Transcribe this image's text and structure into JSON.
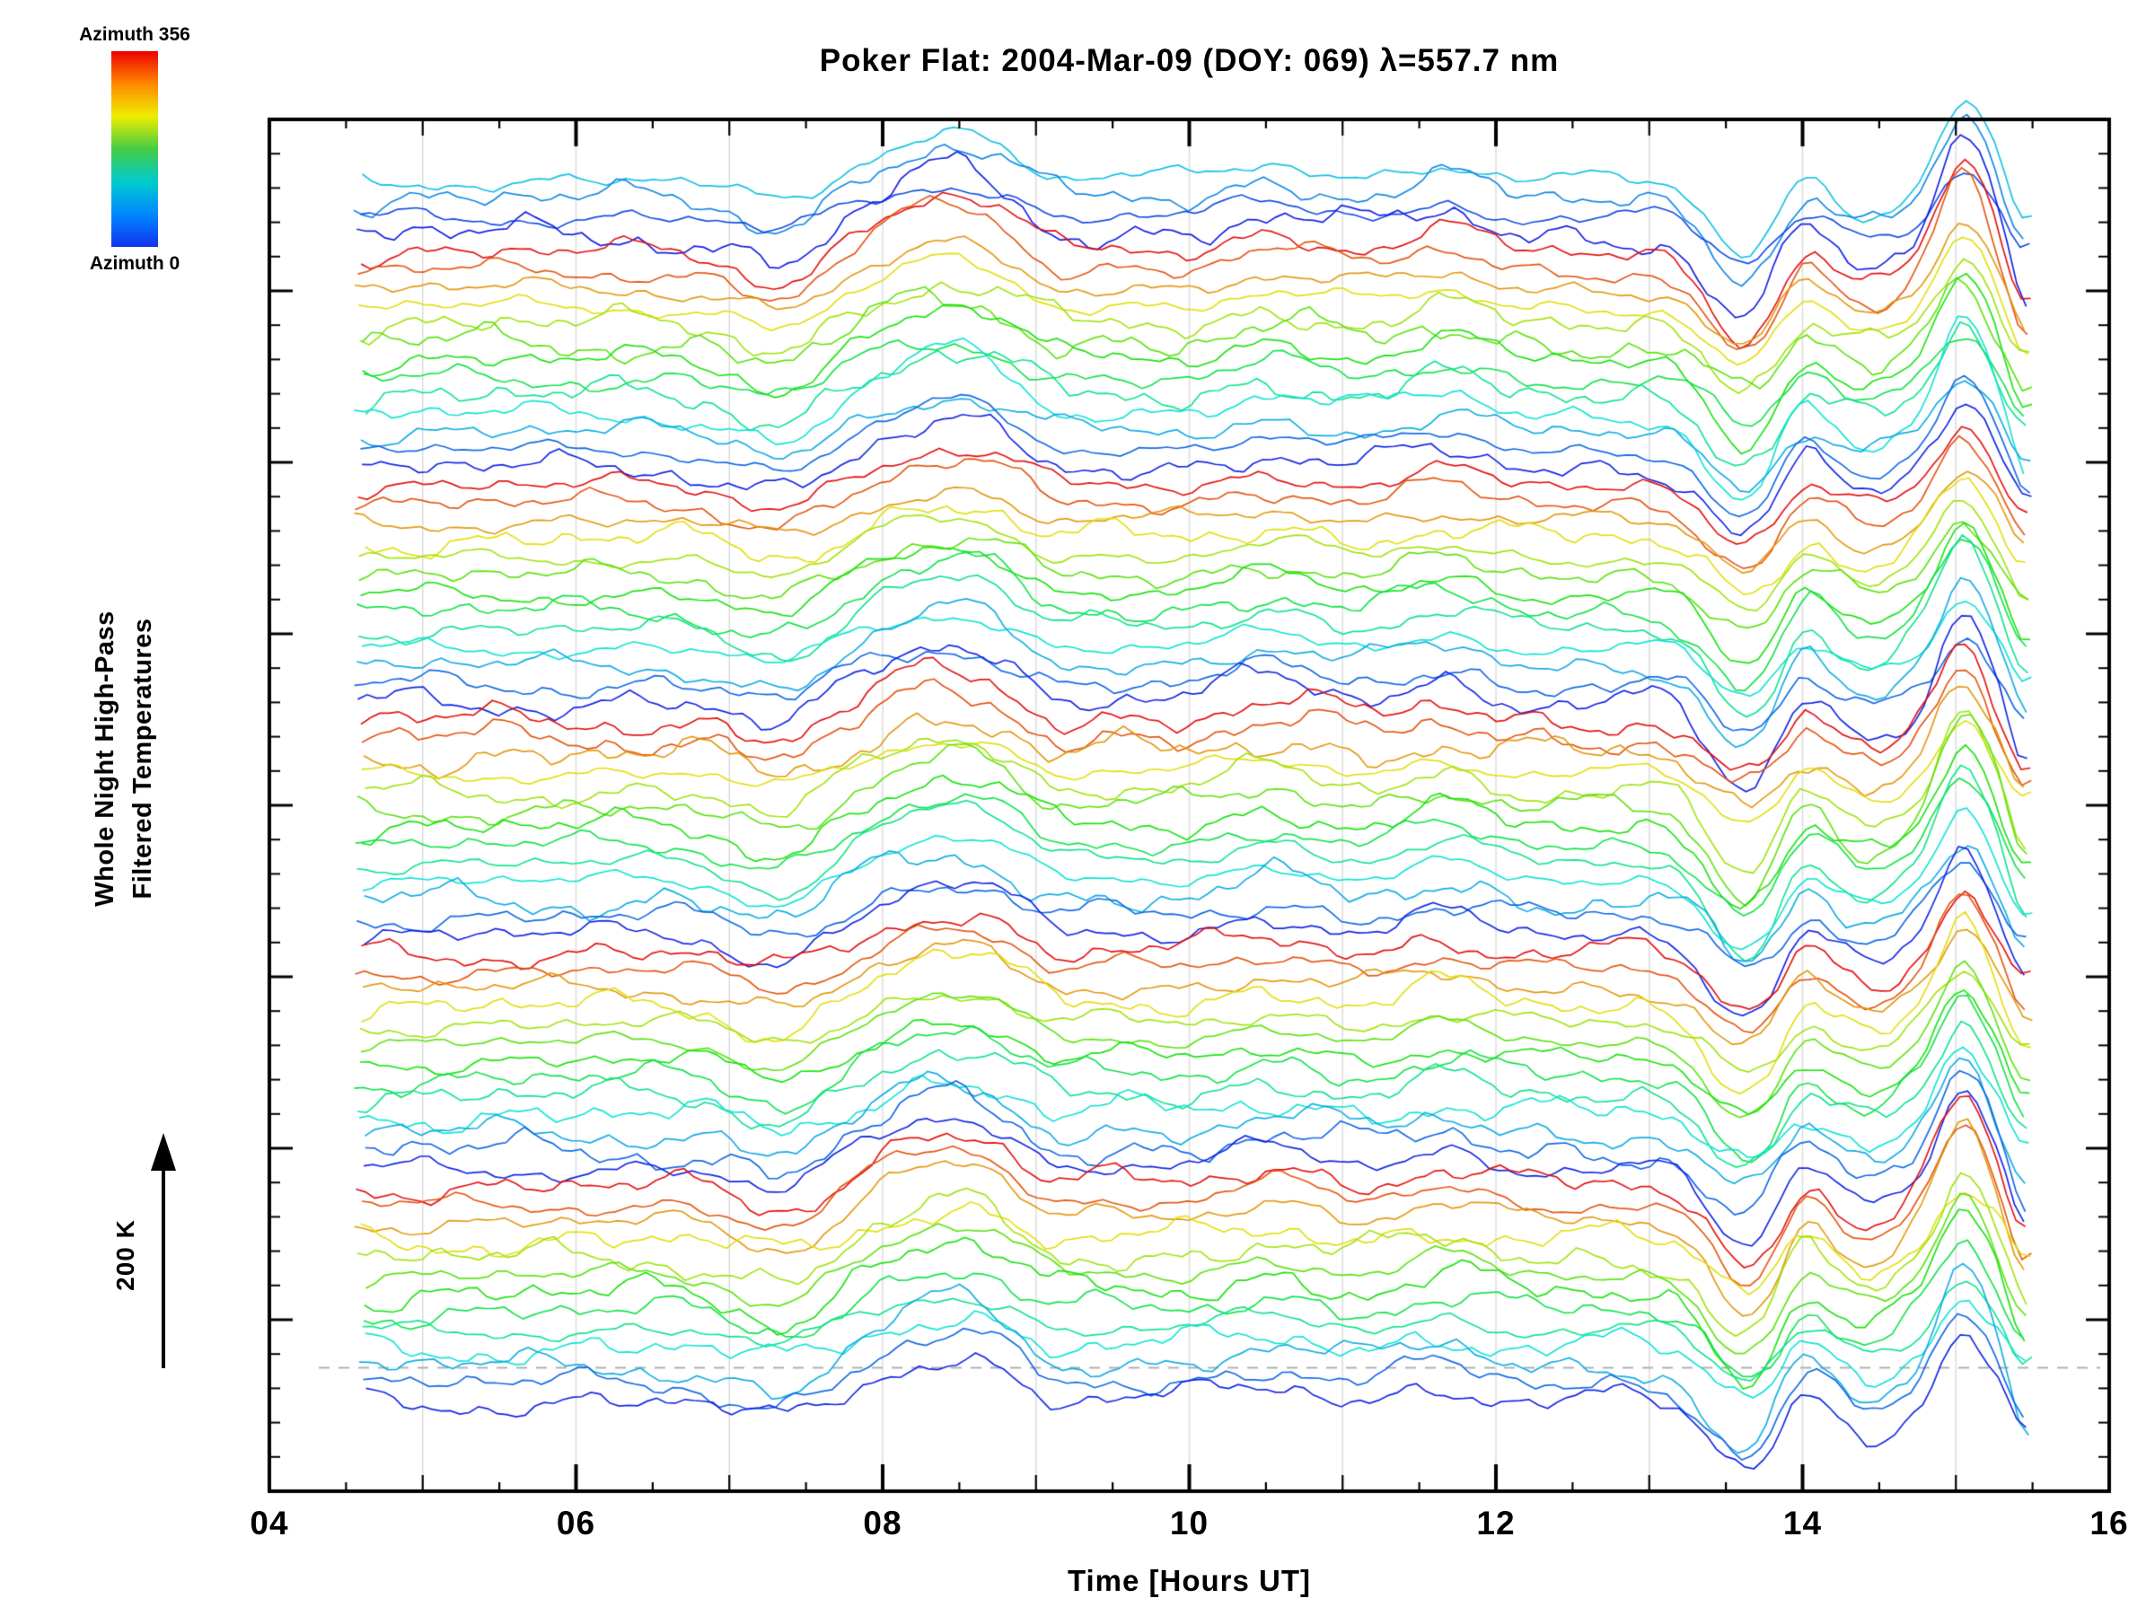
{
  "title": "Poker Flat: 2004-Mar-09 (DOY: 069) λ=557.7 nm",
  "xlabel": "Time [Hours UT]",
  "ylabel_line1": "Whole Night High-Pass",
  "ylabel_line2": "Filtered Temperatures",
  "scale_label": "200 K",
  "colorbar": {
    "top_label": "Azimuth 356",
    "bottom_label": "Azimuth 0",
    "stops": [
      "#ee0000",
      "#ff8800",
      "#eeee00",
      "#44cc44",
      "#00cccc",
      "#0088ff",
      "#1133ee"
    ]
  },
  "chart_data": {
    "type": "line",
    "title": "Poker Flat: 2004-Mar-09 (DOY: 069) λ=557.7 nm",
    "xlabel": "Time [Hours UT]",
    "ylabel": "Whole Night High-Pass Filtered Temperatures",
    "x_range": [
      4,
      16
    ],
    "x_tick_values": [
      4,
      6,
      8,
      10,
      12,
      14,
      16
    ],
    "x_tick_labels": [
      "04",
      "06",
      "08",
      "10",
      "12",
      "14",
      "16"
    ],
    "x_minor_step": 0.5,
    "grid_x_hours": [
      5,
      6,
      7,
      8,
      9,
      10,
      11,
      12,
      13,
      14,
      15
    ],
    "grid_on": true,
    "legend_position": "colorbar-top-left",
    "data_x_start": 4.55,
    "data_x_end": 15.5,
    "n_points": 180,
    "scale_bar_kelvin": 200,
    "azimuth_min": 0,
    "azimuth_max": 356,
    "trace_azimuths": [
      75,
      50,
      25,
      5,
      356,
      327,
      298,
      269,
      240,
      211,
      182,
      153,
      124,
      95,
      66,
      37,
      8,
      356,
      327,
      298,
      269,
      240,
      211,
      182,
      153,
      124,
      95,
      66,
      37,
      8,
      356,
      327,
      298,
      269,
      240,
      211,
      182,
      153,
      124,
      95,
      66,
      37,
      8,
      356,
      327,
      298,
      269,
      240,
      211,
      182,
      153,
      124,
      95,
      66,
      37,
      8,
      356,
      327,
      298,
      269,
      240,
      211,
      182,
      153,
      124,
      95,
      66,
      37,
      8
    ],
    "offset_frac_start": 0.045,
    "offset_frac_end": 0.935,
    "noise_amp_frac": 0.011,
    "features": [
      {
        "center": 8.45,
        "width": 0.5,
        "amp": 0.035
      },
      {
        "center": 7.35,
        "width": 0.28,
        "amp": -0.018
      },
      {
        "center": 9.1,
        "width": 0.2,
        "amp": -0.012
      },
      {
        "center": 10.55,
        "width": 0.3,
        "amp": 0.012
      },
      {
        "center": 11.65,
        "width": 0.25,
        "amp": 0.012
      },
      {
        "center": 13.62,
        "width": 0.22,
        "amp": -0.05
      },
      {
        "center": 14.0,
        "width": 0.12,
        "amp": 0.015
      },
      {
        "center": 14.45,
        "width": 0.2,
        "amp": -0.022
      },
      {
        "center": 15.05,
        "width": 0.15,
        "amp": 0.055
      },
      {
        "center": 15.45,
        "width": 0.09,
        "amp": -0.032
      }
    ],
    "dashed_line_frac": 0.91
  }
}
